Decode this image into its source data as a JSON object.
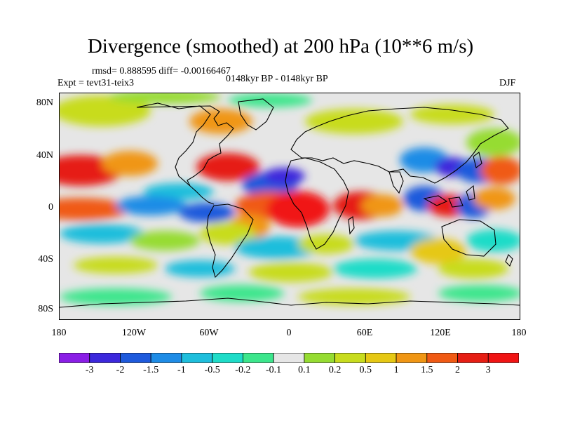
{
  "title": "Divergence (smoothed) at 200 hPa (10**6 m/s)",
  "stats": "rmsd= 0.888595 diff= -0.00166467",
  "experiment": "Expt = tevt31-teix3",
  "period": "0148kyr BP - 0148kyr BP",
  "season": "DJF",
  "axes": {
    "lat_labels": [
      "80N",
      "40N",
      "0",
      "40S",
      "80S"
    ],
    "lon_labels": [
      "180",
      "120W",
      "60W",
      "0",
      "60E",
      "120E",
      "180"
    ]
  },
  "colorbar": {
    "labels": [
      "-3",
      "-2",
      "-1.5",
      "-1",
      "-0.5",
      "-0.2",
      "-0.1",
      "0.1",
      "0.2",
      "0.5",
      "1",
      "1.5",
      "2",
      "3"
    ],
    "colors": [
      "#8a1ee6",
      "#3c28dc",
      "#1e5adc",
      "#1e8ce6",
      "#1ebedc",
      "#1edcc8",
      "#3ce68c",
      "#e6e6e6",
      "#96dc32",
      "#c8dc1e",
      "#e6c814",
      "#f09614",
      "#f05a14",
      "#e61e14",
      "#f01414"
    ]
  },
  "palette": {
    "land_outline": "#000000",
    "background": "#e6e6e6"
  }
}
